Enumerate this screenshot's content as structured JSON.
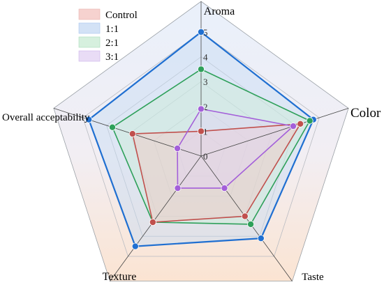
{
  "chart_data": {
    "type": "radar",
    "title": "",
    "axes": [
      "Aroma",
      "Color",
      "Taste",
      "Texture",
      "Overall acceptability"
    ],
    "rmax": 5,
    "ticks": [
      "0",
      "1",
      "2",
      "3",
      "4",
      "5"
    ],
    "grid": true,
    "legend_position": "top-left",
    "series": [
      {
        "name": "Control",
        "values": [
          1.0,
          4.2,
          3.0,
          3.3,
          2.9
        ],
        "color": "#c0504d",
        "fill": "#f4c7c3"
      },
      {
        "name": "1:1",
        "values": [
          5.0,
          4.75,
          4.1,
          4.5,
          4.75
        ],
        "color": "#1f6fd1",
        "fill": "#c6dbf5"
      },
      {
        "name": "2:1",
        "values": [
          3.5,
          4.6,
          3.4,
          3.3,
          3.75
        ],
        "color": "#2ea05a",
        "fill": "#cdeed8"
      },
      {
        "name": "3:1",
        "values": [
          1.9,
          3.9,
          1.6,
          1.6,
          1.0
        ],
        "color": "#a35fd9",
        "fill": "#e3d3f4"
      }
    ]
  }
}
